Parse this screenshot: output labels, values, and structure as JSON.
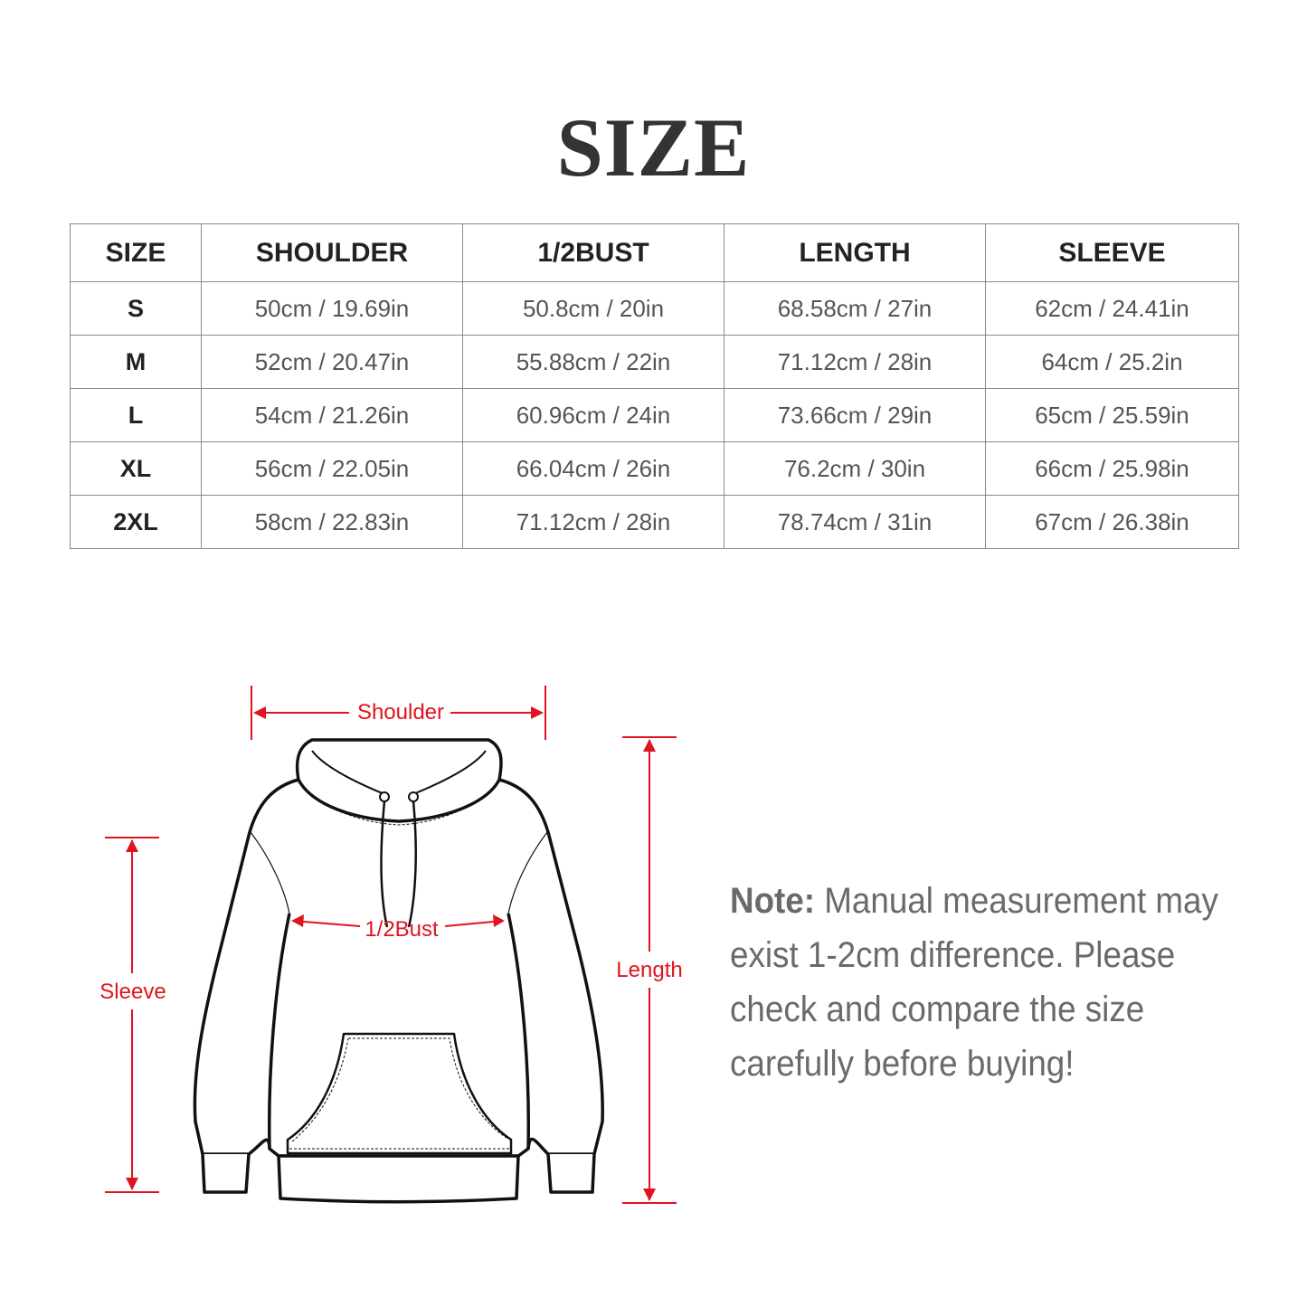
{
  "title": "SIZE",
  "table": {
    "headers": [
      "SIZE",
      "SHOULDER",
      "1/2BUST",
      "LENGTH",
      "SLEEVE"
    ],
    "rows": [
      [
        "S",
        "50cm / 19.69in",
        "50.8cm / 20in",
        "68.58cm / 27in",
        "62cm / 24.41in"
      ],
      [
        "M",
        "52cm / 20.47in",
        "55.88cm / 22in",
        "71.12cm / 28in",
        "64cm / 25.2in"
      ],
      [
        "L",
        "54cm / 21.26in",
        "60.96cm / 24in",
        "73.66cm / 29in",
        "65cm / 25.59in"
      ],
      [
        "XL",
        "56cm / 22.05in",
        "66.04cm / 26in",
        "76.2cm / 30in",
        "66cm / 25.98in"
      ],
      [
        "2XL",
        "58cm / 22.83in",
        "71.12cm / 28in",
        "78.74cm / 31in",
        "67cm / 26.38in"
      ]
    ]
  },
  "diagram": {
    "labels": {
      "shoulder": "Shoulder",
      "bust": "1/2Bust",
      "length": "Length",
      "sleeve": "Sleeve"
    },
    "accent_color": "#e0141e"
  },
  "note": {
    "label": "Note:",
    "text": " Manual measurement may exist 1-2cm difference. Please check and compare the size carefully before buying!"
  }
}
